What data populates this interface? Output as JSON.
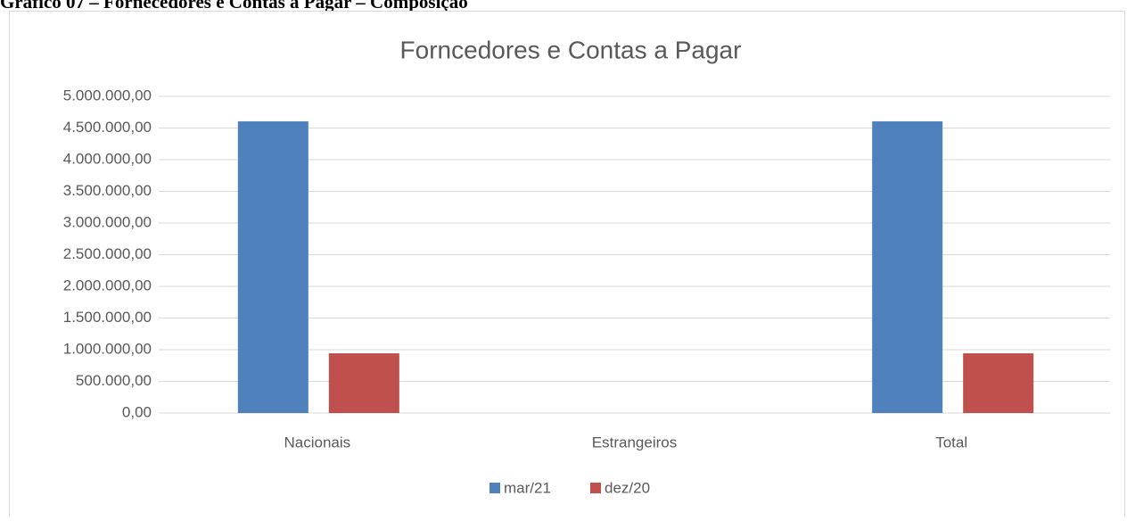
{
  "heading": "Gráfico 07 – Fornecedores e Contas a Pagar – Composição",
  "chart_data": {
    "type": "bar",
    "title": "Forncedores e Contas a Pagar",
    "categories": [
      "Nacionais",
      "Estrangeiros",
      "Total"
    ],
    "series": [
      {
        "name": "mar/21",
        "color": "#4f81bd",
        "values": [
          4605000,
          0,
          4605000
        ]
      },
      {
        "name": "dez/20",
        "color": "#c0504d",
        "values": [
          943000,
          0,
          943000
        ]
      }
    ],
    "ylim": [
      0,
      5000000
    ],
    "yticks": [
      {
        "value": 0,
        "label": "0,00"
      },
      {
        "value": 500000,
        "label": "500.000,00"
      },
      {
        "value": 1000000,
        "label": "1.000.000,00"
      },
      {
        "value": 1500000,
        "label": "1.500.000,00"
      },
      {
        "value": 2000000,
        "label": "2.000.000,00"
      },
      {
        "value": 2500000,
        "label": "2.500.000,00"
      },
      {
        "value": 3000000,
        "label": "3.000.000,00"
      },
      {
        "value": 3500000,
        "label": "3.500.000,00"
      },
      {
        "value": 4000000,
        "label": "4.000.000,00"
      },
      {
        "value": 4500000,
        "label": "4.500.000,00"
      },
      {
        "value": 5000000,
        "label": "5.000.000,00"
      }
    ],
    "grid": true,
    "legend": "bottom"
  }
}
